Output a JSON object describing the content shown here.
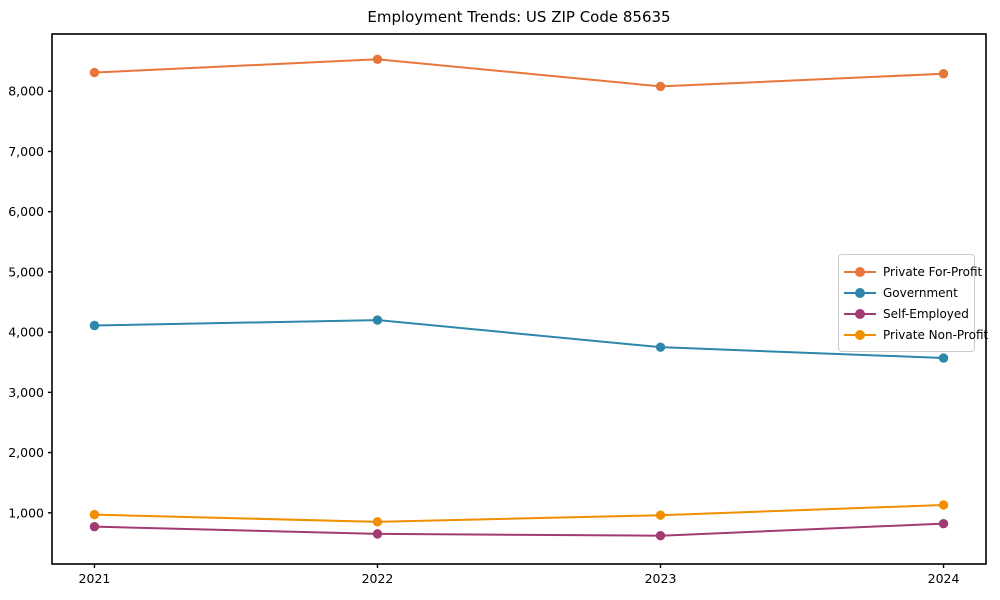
{
  "title": "Employment Trends: US ZIP Code 85635",
  "chart_data": {
    "type": "line",
    "title": "Employment Trends: US ZIP Code 85635",
    "xlabel": "",
    "ylabel": "",
    "x": [
      2021,
      2022,
      2023,
      2024
    ],
    "categories": [
      "2021",
      "2022",
      "2023",
      "2024"
    ],
    "series": [
      {
        "name": "Private For-Profit",
        "color": "#E8763B",
        "values": [
          8310,
          8530,
          8080,
          8290
        ]
      },
      {
        "name": "Government",
        "color": "#2E86AB",
        "values": [
          4110,
          4200,
          3750,
          3570
        ]
      },
      {
        "name": "Self-Employed",
        "color": "#A23B72",
        "values": [
          770,
          650,
          620,
          820
        ]
      },
      {
        "name": "Private Non-Profit",
        "color": "#F18F01",
        "values": [
          970,
          850,
          960,
          1130
        ]
      }
    ],
    "ylim": [
      150,
      8950
    ],
    "xlim": [
      2020.85,
      2024.15
    ],
    "yticks": [
      1000,
      2000,
      3000,
      4000,
      5000,
      6000,
      7000,
      8000
    ],
    "ytick_labels": [
      "1,000",
      "2,000",
      "3,000",
      "4,000",
      "5,000",
      "6,000",
      "7,000",
      "8,000"
    ],
    "grid": false,
    "legend_position": "center-right",
    "marker": "circle",
    "axis_color": "#000000"
  }
}
